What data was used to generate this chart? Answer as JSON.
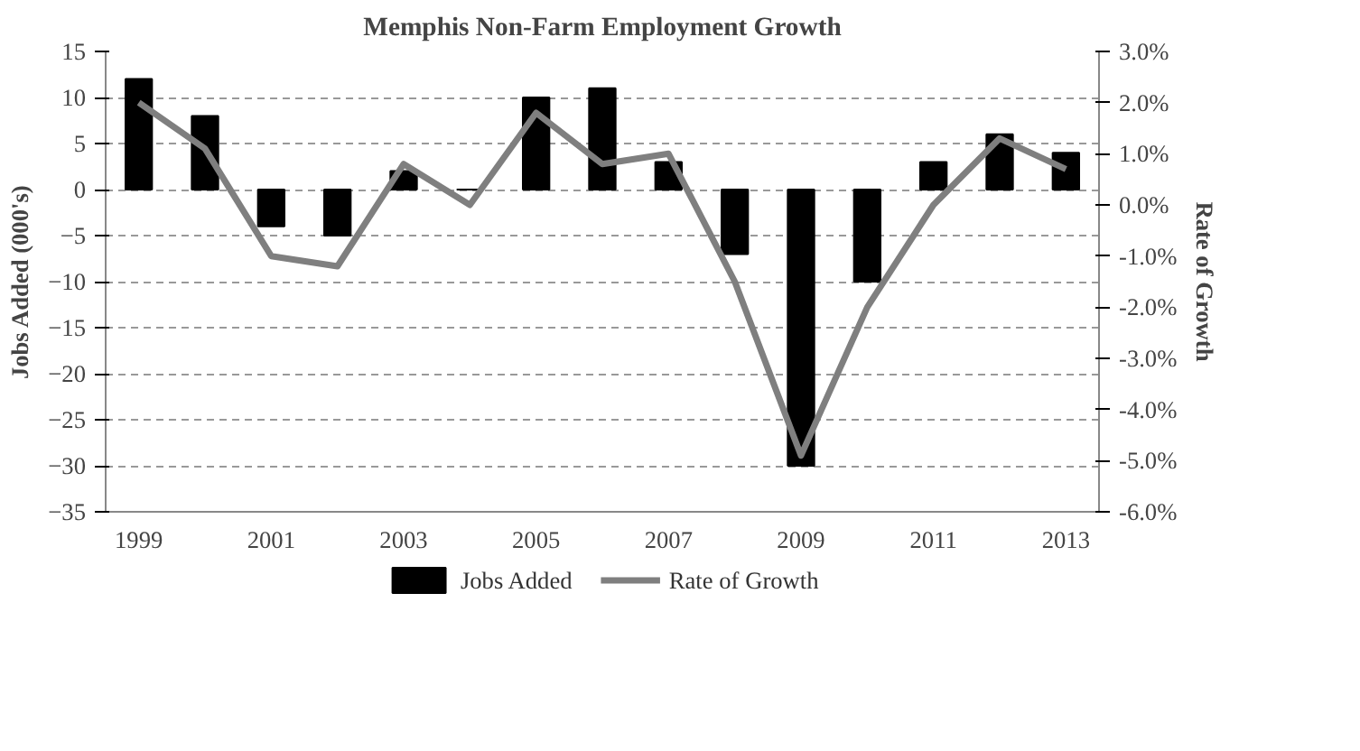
{
  "chart_data": {
    "type": "bar",
    "title": "Memphis Non-Farm Employment Growth",
    "ylabel": "Jobs Added (000's)",
    "y2label": "Rate of Growth",
    "categories": [
      "1999",
      null,
      "2001",
      null,
      "2003",
      null,
      "2005",
      null,
      "2007",
      null,
      "2009",
      null,
      "2011",
      null,
      "2013"
    ],
    "series": [
      {
        "name": "Jobs Added",
        "color": "#000000",
        "values": [
          12,
          8,
          -4,
          -5,
          2,
          0,
          10,
          11,
          3,
          -7,
          -30,
          -10,
          3,
          6,
          4
        ]
      },
      {
        "name": "Rate of Growth",
        "type": "line",
        "axis": "y2",
        "color": "#7f7f7f",
        "values": [
          2.0,
          1.1,
          -1.0,
          -1.2,
          0.8,
          0.0,
          1.8,
          0.8,
          1.0,
          -1.5,
          -4.9,
          -2.0,
          0.0,
          1.3,
          0.7
        ]
      }
    ],
    "ylim": [
      -35,
      15
    ],
    "yticks": [
      -35,
      -30,
      -25,
      -20,
      -15,
      -10,
      -5,
      0,
      5,
      10,
      15
    ],
    "y2lim": [
      -6,
      3
    ],
    "y2ticks": [
      {
        "value": -6,
        "label": "-6.0%"
      },
      {
        "value": -5,
        "label": "-5.0%"
      },
      {
        "value": -4,
        "label": "-4.0%"
      },
      {
        "value": -3,
        "label": "-3.0%"
      },
      {
        "value": -2,
        "label": "-2.0%"
      },
      {
        "value": -1,
        "label": "-1.0%"
      },
      {
        "value": 0,
        "label": "0.0%"
      },
      {
        "value": 1,
        "label": "1.0%"
      },
      {
        "value": 2,
        "label": "2.0%"
      },
      {
        "value": 3,
        "label": "3.0%"
      }
    ],
    "grid": "y",
    "legend": "bottom",
    "marker": "none",
    "line_style": "solid"
  }
}
